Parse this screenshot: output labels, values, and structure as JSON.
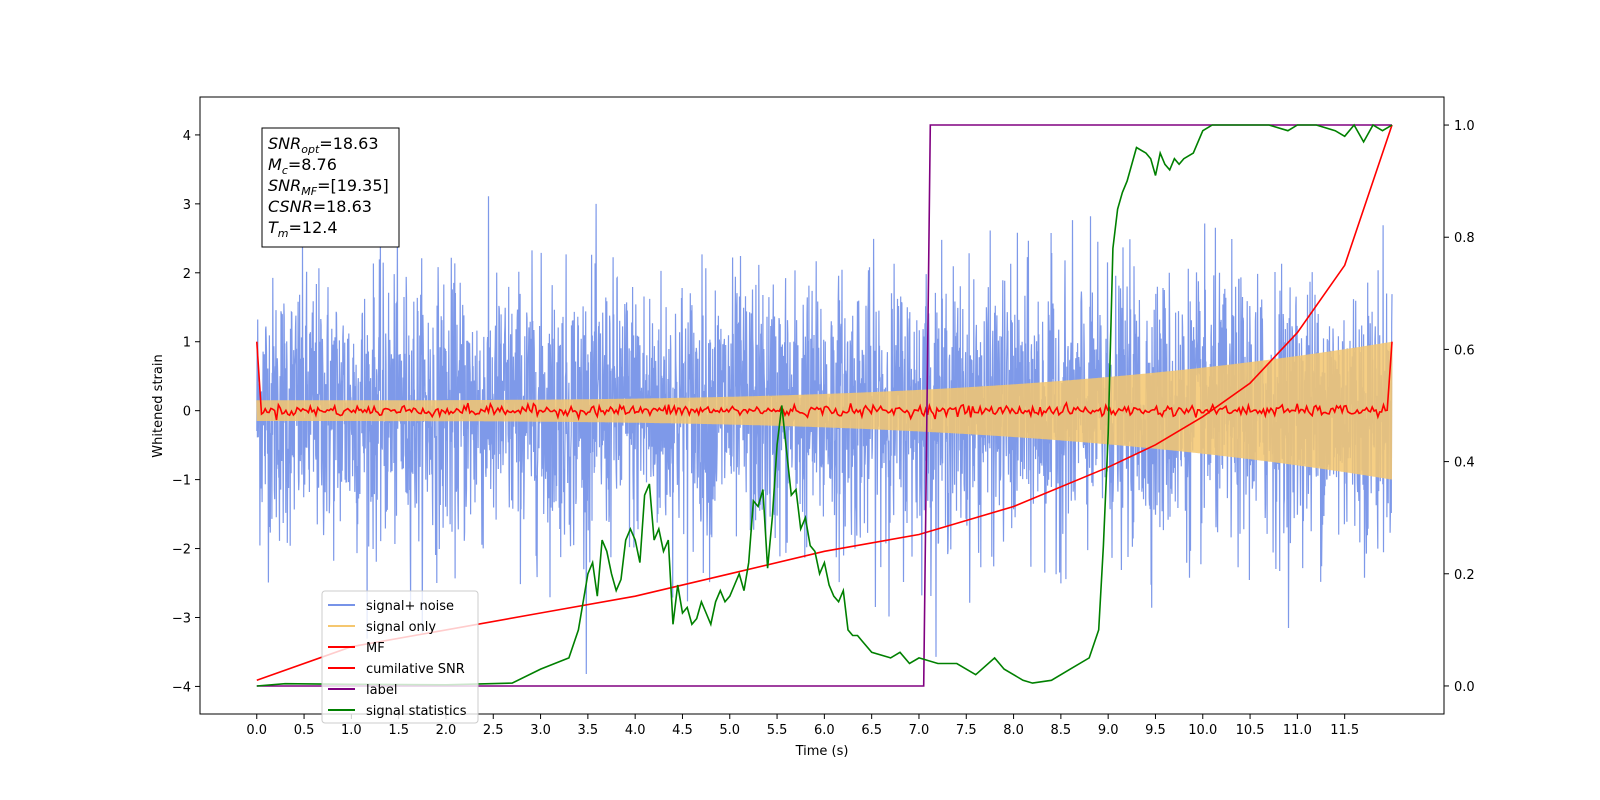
{
  "chart_data": {
    "type": "line",
    "xlabel": "Time (s)",
    "ylabel": "Whitened strain",
    "xlim": [
      -0.6,
      12.55
    ],
    "ylim": [
      -4.4,
      4.55
    ],
    "y2lim": [
      -0.05,
      1.05
    ],
    "x_ticks": [
      "0.0",
      "0.5",
      "1.0",
      "1.5",
      "2.0",
      "2.5",
      "3.0",
      "3.5",
      "4.0",
      "4.5",
      "5.0",
      "5.5",
      "6.0",
      "6.5",
      "7.0",
      "7.5",
      "8.0",
      "8.5",
      "9.0",
      "9.5",
      "10.0",
      "10.5",
      "11.0",
      "11.5"
    ],
    "y_ticks": [
      "−4",
      "−3",
      "−2",
      "−1",
      "0",
      "1",
      "2",
      "3",
      "4"
    ],
    "y2_ticks": [
      "0.0",
      "0.2",
      "0.4",
      "0.6",
      "0.8",
      "1.0"
    ],
    "legend": {
      "placement": "lower-left",
      "entries": [
        "signal+ noise",
        "signal only",
        "MF",
        "cumilative SNR",
        "label",
        "signal statistics"
      ]
    },
    "info_box": {
      "lines": [
        {
          "sym": "SNR",
          "sub": "opt",
          "val": "=18.63"
        },
        {
          "sym": "M",
          "sub": "c",
          "val": "=8.76"
        },
        {
          "sym": "SNR",
          "sub": "MF",
          "val": "=[19.35]"
        },
        {
          "sym": "CSNR",
          "sub": "",
          "val": "=18.63"
        },
        {
          "sym": "T",
          "sub": "m",
          "val": "=12.4"
        }
      ]
    },
    "series": [
      {
        "name": "signal+ noise",
        "color": "#7793e8",
        "axis": "left",
        "description": "noisy whitened strain, amplitude about ±2.5 with peaks near ±4"
      },
      {
        "name": "signal only",
        "color": "#f5c76f",
        "axis": "left",
        "description": "chirp, envelope growing from 0.15 at t=0 to 1.0 at t=12"
      },
      {
        "name": "MF",
        "color": "#ff0000",
        "axis": "left",
        "description": "matched filter output near 0 with spikes to 1 at both ends"
      },
      {
        "name": "cumilative SNR",
        "color": "#ff0000",
        "axis": "right",
        "x": [
          0.0,
          1.0,
          2.0,
          3.0,
          4.0,
          5.0,
          6.0,
          7.0,
          8.0,
          9.0,
          9.5,
          10.0,
          10.5,
          11.0,
          11.5,
          12.0
        ],
        "y": [
          0.01,
          0.07,
          0.1,
          0.13,
          0.16,
          0.2,
          0.24,
          0.27,
          0.32,
          0.39,
          0.43,
          0.48,
          0.54,
          0.63,
          0.75,
          1.0
        ]
      },
      {
        "name": "label",
        "color": "#800080",
        "axis": "right",
        "x": [
          0.0,
          7.05,
          7.12,
          12.0
        ],
        "y": [
          0.0,
          0.0,
          1.0,
          1.0
        ]
      },
      {
        "name": "signal statistics",
        "color": "#008000",
        "axis": "right",
        "x": [
          0.0,
          0.3,
          1.0,
          2.0,
          2.7,
          3.0,
          3.3,
          3.4,
          3.5,
          3.55,
          3.6,
          3.65,
          3.7,
          3.75,
          3.8,
          3.85,
          3.9,
          3.95,
          4.0,
          4.05,
          4.1,
          4.15,
          4.2,
          4.25,
          4.3,
          4.35,
          4.4,
          4.45,
          4.5,
          4.55,
          4.6,
          4.65,
          4.7,
          4.75,
          4.8,
          4.85,
          4.9,
          4.95,
          5.0,
          5.05,
          5.1,
          5.15,
          5.2,
          5.25,
          5.3,
          5.35,
          5.4,
          5.45,
          5.5,
          5.55,
          5.6,
          5.65,
          5.7,
          5.75,
          5.8,
          5.85,
          5.9,
          5.95,
          6.0,
          6.05,
          6.1,
          6.15,
          6.2,
          6.25,
          6.3,
          6.35,
          6.4,
          6.5,
          6.7,
          6.8,
          6.9,
          7.0,
          7.2,
          7.4,
          7.6,
          7.8,
          7.9,
          8.0,
          8.1,
          8.2,
          8.4,
          8.6,
          8.8,
          8.9,
          8.95,
          9.0,
          9.05,
          9.1,
          9.15,
          9.2,
          9.3,
          9.4,
          9.45,
          9.5,
          9.55,
          9.6,
          9.65,
          9.7,
          9.75,
          9.8,
          9.9,
          10.0,
          10.1,
          10.2,
          10.3,
          10.5,
          10.7,
          10.9,
          11.0,
          11.2,
          11.4,
          11.5,
          11.6,
          11.7,
          11.8,
          11.9,
          12.0
        ],
        "y": [
          0.0,
          0.004,
          0.003,
          0.002,
          0.005,
          0.03,
          0.05,
          0.1,
          0.2,
          0.22,
          0.16,
          0.26,
          0.24,
          0.2,
          0.17,
          0.19,
          0.26,
          0.28,
          0.26,
          0.22,
          0.34,
          0.36,
          0.26,
          0.28,
          0.24,
          0.26,
          0.11,
          0.18,
          0.13,
          0.14,
          0.11,
          0.12,
          0.15,
          0.13,
          0.11,
          0.15,
          0.17,
          0.15,
          0.16,
          0.18,
          0.2,
          0.17,
          0.22,
          0.33,
          0.32,
          0.35,
          0.21,
          0.3,
          0.43,
          0.5,
          0.42,
          0.34,
          0.35,
          0.28,
          0.3,
          0.25,
          0.24,
          0.2,
          0.22,
          0.18,
          0.16,
          0.15,
          0.17,
          0.1,
          0.09,
          0.09,
          0.08,
          0.06,
          0.05,
          0.06,
          0.04,
          0.05,
          0.04,
          0.04,
          0.02,
          0.05,
          0.03,
          0.02,
          0.01,
          0.005,
          0.01,
          0.03,
          0.05,
          0.1,
          0.25,
          0.45,
          0.78,
          0.85,
          0.88,
          0.9,
          0.96,
          0.95,
          0.94,
          0.91,
          0.95,
          0.93,
          0.92,
          0.94,
          0.93,
          0.94,
          0.95,
          0.99,
          1.0,
          1.0,
          1.0,
          1.0,
          1.0,
          0.99,
          1.0,
          1.0,
          0.99,
          0.98,
          1.0,
          0.97,
          1.0,
          0.99,
          1.0
        ]
      }
    ]
  }
}
